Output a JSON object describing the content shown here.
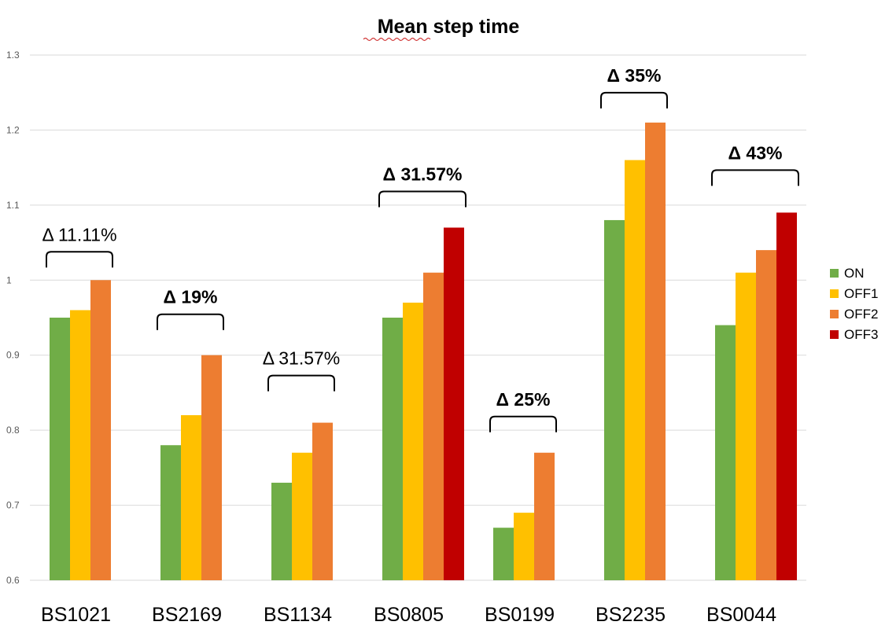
{
  "chart_data": {
    "type": "bar",
    "title": "Mean step time",
    "xlabel": "",
    "ylabel": "",
    "ylim": [
      0.6,
      1.3
    ],
    "yticks": [
      "0.6",
      "0.7",
      "0.8",
      "0.9",
      "1",
      "1.1",
      "1.2",
      "1.3"
    ],
    "grid": true,
    "legend_position": "right",
    "categories": [
      "BS1021",
      "BS2169",
      "BS1134",
      "BS0805",
      "BS0199",
      "BS2235",
      "BS0044"
    ],
    "series": [
      {
        "name": "ON",
        "color": "#70ad47",
        "values": [
          0.95,
          0.78,
          0.73,
          0.95,
          0.67,
          1.08,
          0.94
        ]
      },
      {
        "name": "OFF1",
        "color": "#ffc000",
        "values": [
          0.96,
          0.82,
          0.77,
          0.97,
          0.69,
          1.16,
          1.01
        ]
      },
      {
        "name": "OFF2",
        "color": "#ed7d31",
        "values": [
          1.0,
          0.9,
          0.81,
          1.01,
          0.77,
          1.21,
          1.04
        ]
      },
      {
        "name": "OFF3",
        "color": "#c00000",
        "values": [
          null,
          null,
          null,
          1.07,
          null,
          null,
          1.09
        ]
      }
    ],
    "annotations": [
      {
        "category": "BS1021",
        "text": "Δ 11.11%",
        "bold": false
      },
      {
        "category": "BS2169",
        "text": "Δ 19%",
        "bold": true
      },
      {
        "category": "BS1134",
        "text": "Δ 31.57%",
        "bold": false
      },
      {
        "category": "BS0805",
        "text": "Δ 31.57%",
        "bold": true
      },
      {
        "category": "BS0199",
        "text": "Δ 25%",
        "bold": true
      },
      {
        "category": "BS2235",
        "text": "Δ 35%",
        "bold": true
      },
      {
        "category": "BS0044",
        "text": "Δ 43%",
        "bold": true
      }
    ]
  }
}
